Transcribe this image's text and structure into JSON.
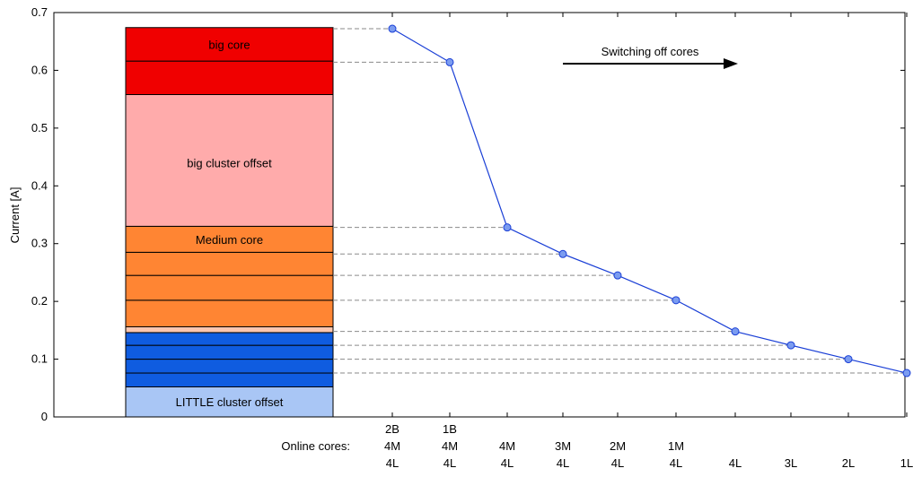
{
  "chart_data": {
    "type": "line",
    "ylabel": "Current  [A]",
    "ylim": [
      0,
      0.7
    ],
    "yticks": [
      "0",
      "0.1",
      "0.2",
      "0.3",
      "0.4",
      "0.5",
      "0.6",
      "0.7"
    ],
    "xaxis_prefix": "Online cores:",
    "annotation": "Switching off cores",
    "series": [
      {
        "categories": [
          [
            "2B",
            "4M",
            "4L"
          ],
          [
            "1B",
            "4M",
            "4L"
          ],
          [
            "4M",
            "4L"
          ],
          [
            "3M",
            "4L"
          ],
          [
            "2M",
            "4L"
          ],
          [
            "1M",
            "4L"
          ],
          [
            "4L"
          ],
          [
            "3L"
          ],
          [
            "2L"
          ],
          [
            "1L"
          ]
        ],
        "values": [
          0.672,
          0.614,
          0.328,
          0.282,
          0.245,
          0.202,
          0.148,
          0.124,
          0.1,
          0.076
        ],
        "color": "#1a3fd6",
        "marker_color": "#7b9cf0"
      }
    ],
    "stacked_bar": {
      "segments": [
        {
          "label": "LITTLE cluster offset",
          "from": 0.0,
          "to": 0.052,
          "color": "#a9c6f5"
        },
        {
          "label": "",
          "from": 0.052,
          "to": 0.076,
          "color": "#0f5ce0"
        },
        {
          "label": "",
          "from": 0.076,
          "to": 0.1,
          "color": "#0f5ce0"
        },
        {
          "label": "",
          "from": 0.1,
          "to": 0.124,
          "color": "#0f5ce0"
        },
        {
          "label": "",
          "from": 0.124,
          "to": 0.146,
          "color": "#0f5ce0"
        },
        {
          "label": "",
          "from": 0.146,
          "to": 0.156,
          "color": "#fcc6b0"
        },
        {
          "label": "",
          "from": 0.156,
          "to": 0.202,
          "color": "#ff8533"
        },
        {
          "label": "",
          "from": 0.202,
          "to": 0.245,
          "color": "#ff8533"
        },
        {
          "label": "",
          "from": 0.245,
          "to": 0.285,
          "color": "#ff8533"
        },
        {
          "label": "Medium core",
          "from": 0.285,
          "to": 0.33,
          "color": "#ff8533"
        },
        {
          "label": "big cluster offset",
          "from": 0.33,
          "to": 0.558,
          "color": "#ffabab"
        },
        {
          "label": "",
          "from": 0.558,
          "to": 0.616,
          "color": "#f00000"
        },
        {
          "label": "big core",
          "from": 0.616,
          "to": 0.674,
          "color": "#f00000"
        }
      ]
    },
    "guide_color": "#8a8a8a",
    "grid": false
  }
}
